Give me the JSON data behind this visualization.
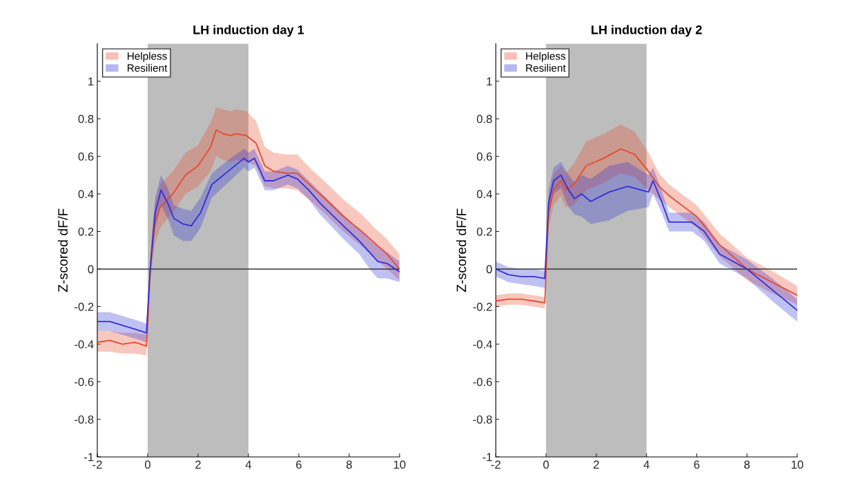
{
  "chart_data": [
    {
      "type": "line",
      "title": "LH induction day 1",
      "ylabel": "Z-scored dF/F",
      "xlim": [
        -2,
        10
      ],
      "ylim": [
        -1,
        1.2
      ],
      "xticks": [
        -2,
        0,
        2,
        4,
        6,
        8,
        10
      ],
      "yticks": [
        -1,
        -0.8,
        -0.6,
        -0.4,
        -0.2,
        0,
        0.2,
        0.4,
        0.6,
        0.8,
        1
      ],
      "legend": "top left",
      "grid": false,
      "ref_lines": [
        {
          "axis": "y",
          "value": 0,
          "color": "#333333"
        }
      ],
      "bands": [
        {
          "axis": "x",
          "from": 0,
          "to": 4,
          "color": "#bdbdbd"
        }
      ],
      "series": [
        {
          "name": "Helpless",
          "color": "#e8482c",
          "x": [
            -2,
            -1.5,
            -1,
            -0.5,
            -0.05,
            0,
            0.1,
            0.2,
            0.3,
            0.5,
            1.0,
            1.5,
            2.0,
            2.5,
            2.72,
            3.0,
            3.3,
            3.5,
            3.92,
            4.3,
            4.65,
            5.0,
            5.5,
            5.94,
            6.5,
            7.0,
            7.77,
            8.5,
            9.0,
            9.5,
            10
          ],
          "values": [
            -0.39,
            -0.38,
            -0.4,
            -0.39,
            -0.41,
            -0.3,
            0.0,
            0.15,
            0.25,
            0.33,
            0.4,
            0.5,
            0.55,
            0.65,
            0.74,
            0.72,
            0.71,
            0.72,
            0.71,
            0.67,
            0.55,
            0.52,
            0.51,
            0.51,
            0.44,
            0.38,
            0.28,
            0.2,
            0.14,
            0.08,
            0.0
          ],
          "lower": [
            -0.44,
            -0.44,
            -0.45,
            -0.45,
            -0.46,
            -0.36,
            -0.08,
            0.05,
            0.14,
            0.22,
            0.3,
            0.4,
            0.44,
            0.52,
            0.6,
            0.58,
            0.57,
            0.58,
            0.57,
            0.55,
            0.44,
            0.43,
            0.43,
            0.42,
            0.36,
            0.3,
            0.2,
            0.12,
            0.06,
            0.0,
            -0.06
          ],
          "upper": [
            -0.33,
            -0.33,
            -0.34,
            -0.34,
            -0.35,
            -0.24,
            0.08,
            0.25,
            0.36,
            0.45,
            0.52,
            0.62,
            0.66,
            0.78,
            0.86,
            0.85,
            0.84,
            0.85,
            0.84,
            0.79,
            0.65,
            0.62,
            0.61,
            0.61,
            0.53,
            0.47,
            0.37,
            0.29,
            0.22,
            0.16,
            0.08
          ]
        },
        {
          "name": "Resilient",
          "color": "#2d31d8",
          "x": [
            -2,
            -1.5,
            -1,
            -0.5,
            -0.05,
            0.1,
            0.3,
            0.53,
            0.8,
            1.04,
            1.4,
            1.73,
            2.1,
            2.55,
            3.19,
            3.83,
            4.0,
            4.24,
            4.65,
            5.0,
            5.57,
            5.94,
            6.4,
            6.85,
            7.77,
            8.4,
            8.87,
            9.14,
            9.5,
            10
          ],
          "values": [
            -0.28,
            -0.28,
            -0.3,
            -0.32,
            -0.34,
            0.0,
            0.3,
            0.42,
            0.35,
            0.27,
            0.24,
            0.23,
            0.3,
            0.45,
            0.52,
            0.59,
            0.57,
            0.59,
            0.47,
            0.47,
            0.5,
            0.48,
            0.42,
            0.35,
            0.23,
            0.15,
            0.08,
            0.04,
            0.03,
            -0.015
          ],
          "lower": [
            -0.33,
            -0.33,
            -0.35,
            -0.37,
            -0.39,
            -0.05,
            0.22,
            0.34,
            0.27,
            0.18,
            0.15,
            0.15,
            0.22,
            0.38,
            0.46,
            0.54,
            0.52,
            0.54,
            0.42,
            0.42,
            0.45,
            0.43,
            0.37,
            0.29,
            0.16,
            0.08,
            -0.01,
            -0.05,
            -0.05,
            -0.07
          ],
          "upper": [
            -0.23,
            -0.23,
            -0.25,
            -0.27,
            -0.29,
            0.05,
            0.38,
            0.5,
            0.43,
            0.34,
            0.32,
            0.31,
            0.38,
            0.51,
            0.58,
            0.64,
            0.62,
            0.64,
            0.52,
            0.52,
            0.55,
            0.53,
            0.47,
            0.41,
            0.29,
            0.21,
            0.15,
            0.12,
            0.09,
            0.04
          ]
        }
      ]
    },
    {
      "type": "line",
      "title": "LH induction day 2",
      "ylabel": "Z-scored dF/F",
      "xlim": [
        -2,
        10
      ],
      "ylim": [
        -1,
        1.2
      ],
      "xticks": [
        -2,
        0,
        2,
        4,
        6,
        8,
        10
      ],
      "yticks": [
        -1,
        -0.8,
        -0.6,
        -0.4,
        -0.2,
        0,
        0.2,
        0.4,
        0.6,
        0.8,
        1
      ],
      "legend": "top left",
      "grid": false,
      "ref_lines": [
        {
          "axis": "y",
          "value": 0,
          "color": "#333333"
        }
      ],
      "bands": [
        {
          "axis": "x",
          "from": 0,
          "to": 4,
          "color": "#bdbdbd"
        }
      ],
      "series": [
        {
          "name": "Helpless",
          "color": "#e8482c",
          "x": [
            -2,
            -1.5,
            -1,
            -0.5,
            -0.05,
            0.1,
            0.3,
            0.59,
            0.78,
            1.1,
            1.6,
            2.3,
            2.98,
            3.53,
            4.08,
            4.5,
            4.9,
            5.5,
            6.0,
            6.9,
            7.5,
            8.0,
            9.0,
            10
          ],
          "values": [
            -0.17,
            -0.16,
            -0.16,
            -0.17,
            -0.18,
            0.3,
            0.42,
            0.47,
            0.42,
            0.45,
            0.55,
            0.59,
            0.64,
            0.61,
            0.52,
            0.44,
            0.39,
            0.33,
            0.28,
            0.13,
            0.06,
            0.0,
            -0.07,
            -0.14
          ],
          "lower": [
            -0.2,
            -0.19,
            -0.19,
            -0.2,
            -0.21,
            0.22,
            0.34,
            0.39,
            0.33,
            0.34,
            0.42,
            0.46,
            0.51,
            0.49,
            0.42,
            0.37,
            0.33,
            0.27,
            0.22,
            0.07,
            0.0,
            -0.06,
            -0.13,
            -0.19
          ],
          "upper": [
            -0.14,
            -0.13,
            -0.13,
            -0.14,
            -0.15,
            0.38,
            0.5,
            0.55,
            0.51,
            0.56,
            0.68,
            0.72,
            0.77,
            0.73,
            0.62,
            0.51,
            0.45,
            0.39,
            0.34,
            0.19,
            0.12,
            0.06,
            -0.01,
            -0.09
          ]
        },
        {
          "name": "Resilient",
          "color": "#2d31d8",
          "x": [
            -2,
            -1.5,
            -1,
            -0.5,
            -0.05,
            0.1,
            0.3,
            0.59,
            0.9,
            1.14,
            1.41,
            1.78,
            2.51,
            3.25,
            4.08,
            4.26,
            4.6,
            4.9,
            5.81,
            6.3,
            6.91,
            8.0,
            9.0,
            10
          ],
          "values": [
            0.0,
            -0.03,
            -0.04,
            -0.04,
            -0.05,
            0.35,
            0.47,
            0.5,
            0.42,
            0.375,
            0.4,
            0.36,
            0.41,
            0.44,
            0.41,
            0.47,
            0.36,
            0.25,
            0.25,
            0.2,
            0.08,
            0.0,
            -0.11,
            -0.22
          ],
          "lower": [
            -0.04,
            -0.07,
            -0.08,
            -0.09,
            -0.1,
            0.28,
            0.4,
            0.43,
            0.33,
            0.29,
            0.28,
            0.24,
            0.26,
            0.31,
            0.33,
            0.4,
            0.3,
            0.2,
            0.2,
            0.15,
            0.03,
            -0.05,
            -0.17,
            -0.28
          ],
          "upper": [
            0.04,
            0.01,
            0.0,
            0.0,
            -0.01,
            0.42,
            0.54,
            0.57,
            0.5,
            0.46,
            0.5,
            0.48,
            0.55,
            0.57,
            0.5,
            0.54,
            0.42,
            0.3,
            0.3,
            0.25,
            0.13,
            0.05,
            -0.05,
            -0.16
          ]
        }
      ]
    }
  ]
}
